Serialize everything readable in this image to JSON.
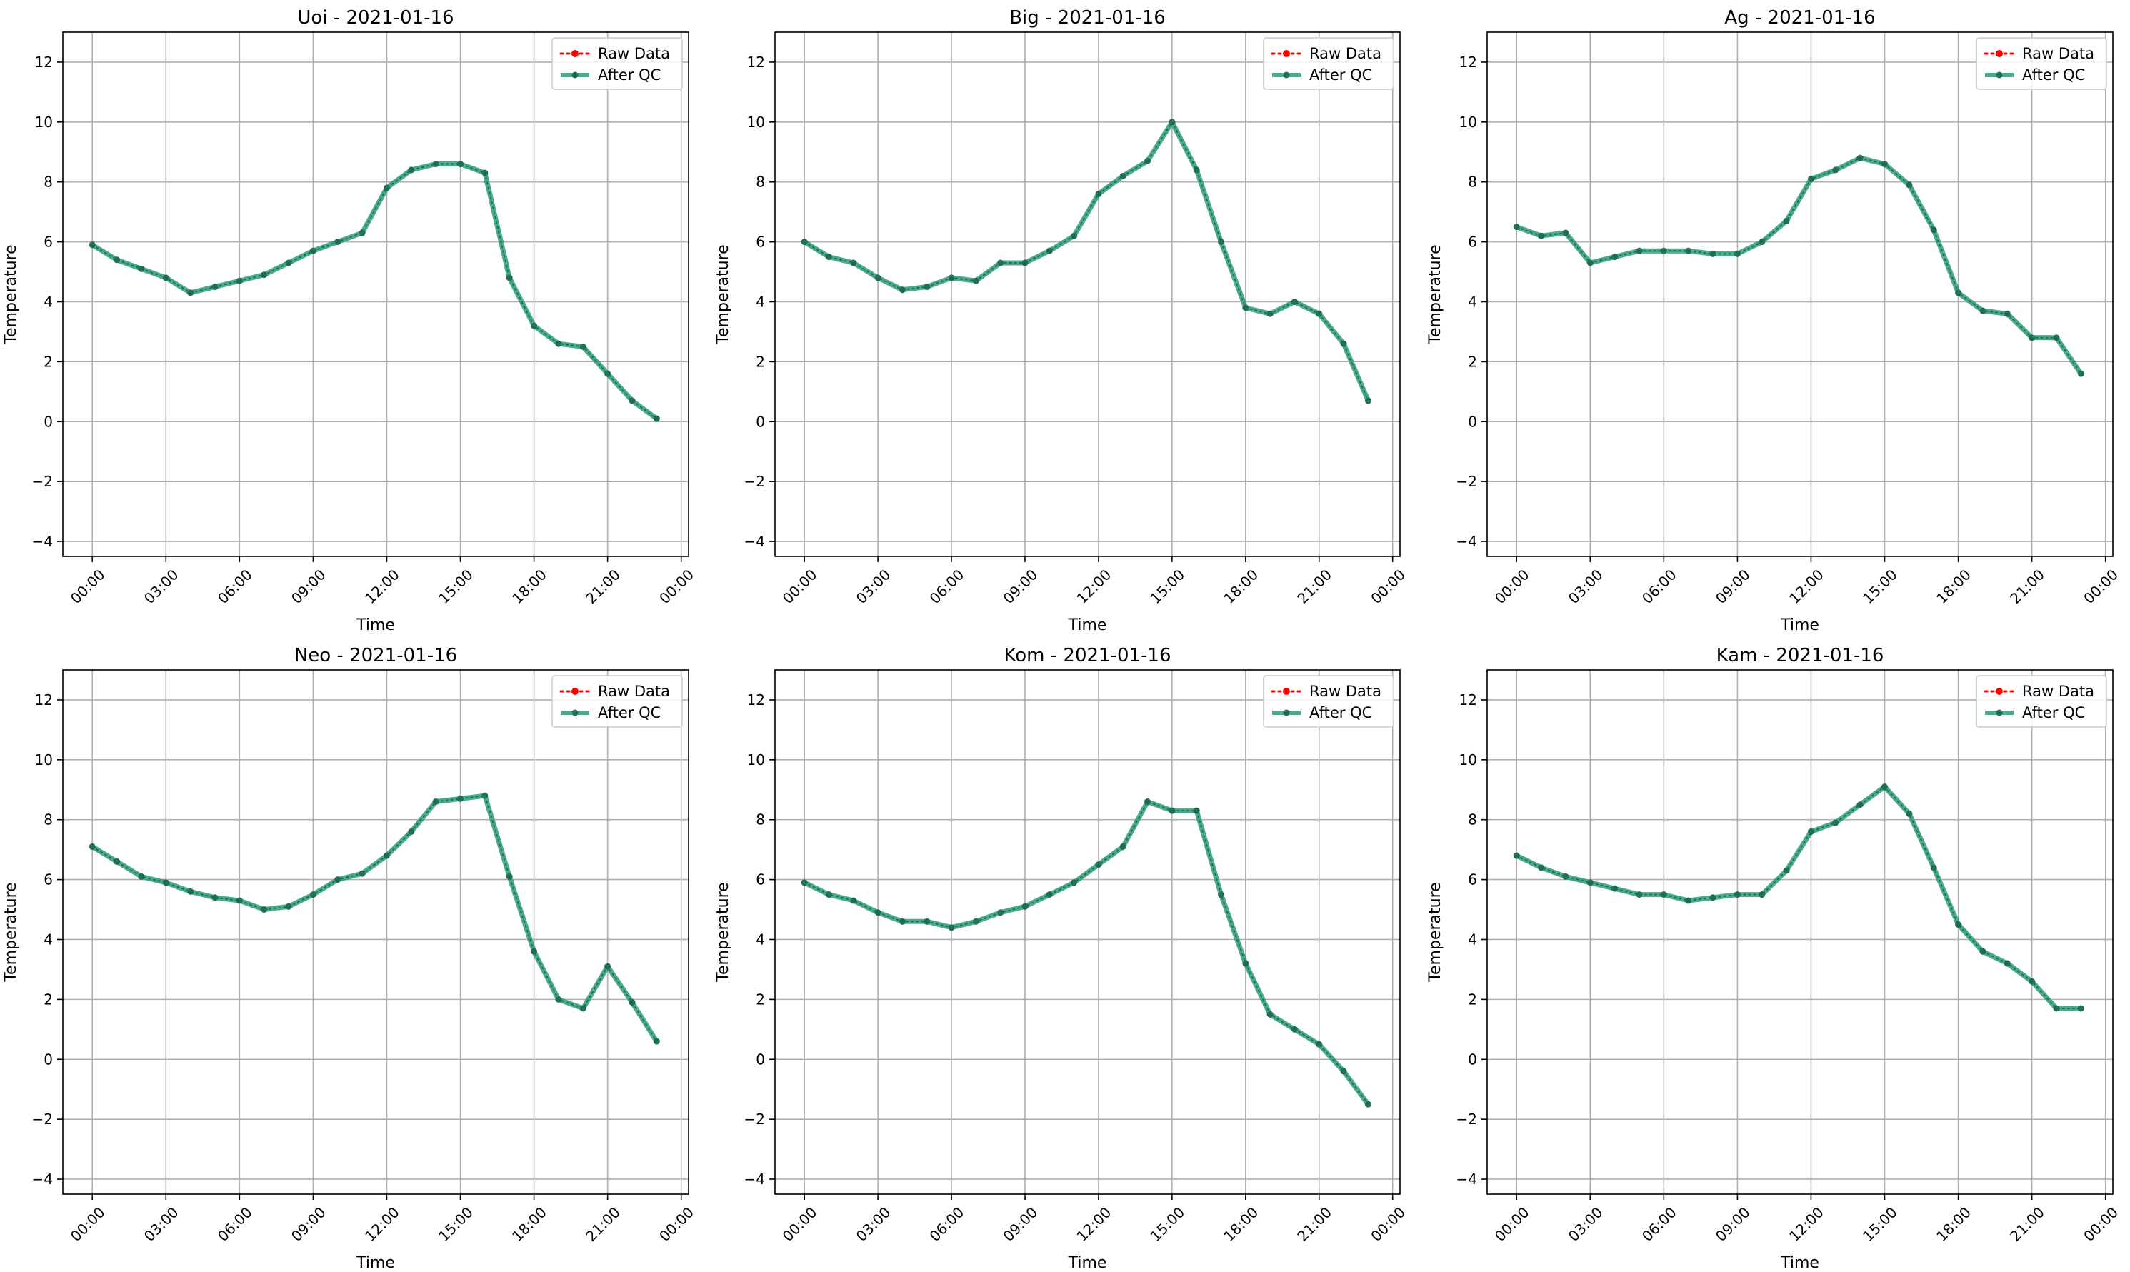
{
  "colors": {
    "raw": "#ff0000",
    "qc": "#2a9d74",
    "qc_marker": "#1f6e55",
    "grid": "#b0b0b0",
    "frame": "#000000"
  },
  "chart_data": [
    {
      "type": "line",
      "title": "Uoi - 2021-01-16",
      "xlabel": "Time",
      "ylabel": "Temperature",
      "xlim_hours": [
        -1.2,
        24.3
      ],
      "ylim": [
        -4.5,
        13.0
      ],
      "x_ticks": [
        "00:00",
        "03:00",
        "06:00",
        "09:00",
        "12:00",
        "15:00",
        "18:00",
        "21:00",
        "00:00"
      ],
      "y_ticks": [
        "−4",
        "−2",
        "0",
        "2",
        "4",
        "6",
        "8",
        "10",
        "12"
      ],
      "grid": true,
      "legend_position": "upper right",
      "legend": [
        "Raw Data",
        "After QC"
      ],
      "x_hours": [
        0,
        1,
        2,
        3,
        4,
        5,
        6,
        7,
        8,
        9,
        10,
        11,
        12,
        13,
        14,
        15,
        16,
        17,
        18,
        19,
        20,
        21,
        22,
        23
      ],
      "series": [
        {
          "name": "Raw Data",
          "values": [
            5.9,
            5.4,
            5.1,
            4.8,
            4.3,
            4.5,
            4.7,
            4.9,
            5.3,
            5.7,
            6.0,
            6.3,
            7.8,
            8.4,
            8.6,
            8.6,
            8.3,
            4.8,
            3.2,
            2.6,
            2.5,
            1.6,
            0.7,
            0.1
          ]
        },
        {
          "name": "After QC",
          "values": [
            5.9,
            5.4,
            5.1,
            4.8,
            4.3,
            4.5,
            4.7,
            4.9,
            5.3,
            5.7,
            6.0,
            6.3,
            7.8,
            8.4,
            8.6,
            8.6,
            8.3,
            4.8,
            3.2,
            2.6,
            2.5,
            1.6,
            0.7,
            0.1
          ]
        }
      ]
    },
    {
      "type": "line",
      "title": "Big - 2021-01-16",
      "xlabel": "Time",
      "ylabel": "Temperature",
      "xlim_hours": [
        -1.2,
        24.3
      ],
      "ylim": [
        -4.5,
        13.0
      ],
      "x_ticks": [
        "00:00",
        "03:00",
        "06:00",
        "09:00",
        "12:00",
        "15:00",
        "18:00",
        "21:00",
        "00:00"
      ],
      "y_ticks": [
        "−4",
        "−2",
        "0",
        "2",
        "4",
        "6",
        "8",
        "10",
        "12"
      ],
      "grid": true,
      "legend_position": "upper right",
      "legend": [
        "Raw Data",
        "After QC"
      ],
      "x_hours": [
        0,
        1,
        2,
        3,
        4,
        5,
        6,
        7,
        8,
        9,
        10,
        11,
        12,
        13,
        14,
        15,
        16,
        17,
        18,
        19,
        20,
        21,
        22,
        23
      ],
      "series": [
        {
          "name": "Raw Data",
          "values": [
            6.0,
            5.5,
            5.3,
            4.8,
            4.4,
            4.5,
            4.8,
            4.7,
            5.3,
            5.3,
            5.7,
            6.2,
            7.6,
            8.2,
            8.7,
            10.0,
            8.4,
            6.0,
            3.8,
            3.6,
            4.0,
            3.6,
            2.6,
            0.7
          ]
        },
        {
          "name": "After QC",
          "values": [
            6.0,
            5.5,
            5.3,
            4.8,
            4.4,
            4.5,
            4.8,
            4.7,
            5.3,
            5.3,
            5.7,
            6.2,
            7.6,
            8.2,
            8.7,
            10.0,
            8.4,
            6.0,
            3.8,
            3.6,
            4.0,
            3.6,
            2.6,
            0.7
          ]
        }
      ]
    },
    {
      "type": "line",
      "title": "Ag - 2021-01-16",
      "xlabel": "Time",
      "ylabel": "Temperature",
      "xlim_hours": [
        -1.2,
        24.3
      ],
      "ylim": [
        -4.5,
        13.0
      ],
      "x_ticks": [
        "00:00",
        "03:00",
        "06:00",
        "09:00",
        "12:00",
        "15:00",
        "18:00",
        "21:00",
        "00:00"
      ],
      "y_ticks": [
        "−4",
        "−2",
        "0",
        "2",
        "4",
        "6",
        "8",
        "10",
        "12"
      ],
      "grid": true,
      "legend_position": "upper right",
      "legend": [
        "Raw Data",
        "After QC"
      ],
      "x_hours": [
        0,
        1,
        2,
        3,
        4,
        5,
        6,
        7,
        8,
        9,
        10,
        11,
        12,
        13,
        14,
        15,
        16,
        17,
        18,
        19,
        20,
        21,
        22,
        23
      ],
      "series": [
        {
          "name": "Raw Data",
          "values": [
            6.5,
            6.2,
            6.3,
            5.3,
            5.5,
            5.7,
            5.7,
            5.7,
            5.6,
            5.6,
            6.0,
            6.7,
            8.1,
            8.4,
            8.8,
            8.6,
            7.9,
            6.4,
            4.3,
            3.7,
            3.6,
            2.8,
            2.8,
            1.6
          ]
        },
        {
          "name": "After QC",
          "values": [
            6.5,
            6.2,
            6.3,
            5.3,
            5.5,
            5.7,
            5.7,
            5.7,
            5.6,
            5.6,
            6.0,
            6.7,
            8.1,
            8.4,
            8.8,
            8.6,
            7.9,
            6.4,
            4.3,
            3.7,
            3.6,
            2.8,
            2.8,
            1.6
          ]
        }
      ]
    },
    {
      "type": "line",
      "title": "Neo - 2021-01-16",
      "xlabel": "Time",
      "ylabel": "Temperature",
      "xlim_hours": [
        -1.2,
        24.3
      ],
      "ylim": [
        -4.5,
        13.0
      ],
      "x_ticks": [
        "00:00",
        "03:00",
        "06:00",
        "09:00",
        "12:00",
        "15:00",
        "18:00",
        "21:00",
        "00:00"
      ],
      "y_ticks": [
        "−4",
        "−2",
        "0",
        "2",
        "4",
        "6",
        "8",
        "10",
        "12"
      ],
      "grid": true,
      "legend_position": "upper right",
      "legend": [
        "Raw Data",
        "After QC"
      ],
      "x_hours": [
        0,
        1,
        2,
        3,
        4,
        5,
        6,
        7,
        8,
        9,
        10,
        11,
        12,
        13,
        14,
        15,
        16,
        17,
        18,
        19,
        20,
        21,
        22,
        23
      ],
      "series": [
        {
          "name": "Raw Data",
          "values": [
            7.1,
            6.6,
            6.1,
            5.9,
            5.6,
            5.4,
            5.3,
            5.0,
            5.1,
            5.5,
            6.0,
            6.2,
            6.8,
            7.6,
            8.6,
            8.7,
            8.8,
            6.1,
            3.6,
            2.0,
            1.7,
            3.1,
            1.9,
            0.6
          ]
        },
        {
          "name": "After QC",
          "values": [
            7.1,
            6.6,
            6.1,
            5.9,
            5.6,
            5.4,
            5.3,
            5.0,
            5.1,
            5.5,
            6.0,
            6.2,
            6.8,
            7.6,
            8.6,
            8.7,
            8.8,
            6.1,
            3.6,
            2.0,
            1.7,
            3.1,
            1.9,
            0.6
          ]
        }
      ]
    },
    {
      "type": "line",
      "title": "Kom - 2021-01-16",
      "xlabel": "Time",
      "ylabel": "Temperature",
      "xlim_hours": [
        -1.2,
        24.3
      ],
      "ylim": [
        -4.5,
        13.0
      ],
      "x_ticks": [
        "00:00",
        "03:00",
        "06:00",
        "09:00",
        "12:00",
        "15:00",
        "18:00",
        "21:00",
        "00:00"
      ],
      "y_ticks": [
        "−4",
        "−2",
        "0",
        "2",
        "4",
        "6",
        "8",
        "10",
        "12"
      ],
      "grid": true,
      "legend_position": "upper right",
      "legend": [
        "Raw Data",
        "After QC"
      ],
      "x_hours": [
        0,
        1,
        2,
        3,
        4,
        5,
        6,
        7,
        8,
        9,
        10,
        11,
        12,
        13,
        14,
        15,
        16,
        17,
        18,
        19,
        20,
        21,
        22,
        23
      ],
      "series": [
        {
          "name": "Raw Data",
          "values": [
            5.9,
            5.5,
            5.3,
            4.9,
            4.6,
            4.6,
            4.4,
            4.6,
            4.9,
            5.1,
            5.5,
            5.9,
            6.5,
            7.1,
            8.6,
            8.3,
            8.3,
            5.5,
            3.2,
            1.5,
            1.0,
            0.5,
            -0.4,
            -1.5
          ]
        },
        {
          "name": "After QC",
          "values": [
            5.9,
            5.5,
            5.3,
            4.9,
            4.6,
            4.6,
            4.4,
            4.6,
            4.9,
            5.1,
            5.5,
            5.9,
            6.5,
            7.1,
            8.6,
            8.3,
            8.3,
            5.5,
            3.2,
            1.5,
            1.0,
            0.5,
            -0.4,
            -1.5
          ]
        }
      ]
    },
    {
      "type": "line",
      "title": "Kam - 2021-01-16",
      "xlabel": "Time",
      "ylabel": "Temperature",
      "xlim_hours": [
        -1.2,
        24.3
      ],
      "ylim": [
        -4.5,
        13.0
      ],
      "x_ticks": [
        "00:00",
        "03:00",
        "06:00",
        "09:00",
        "12:00",
        "15:00",
        "18:00",
        "21:00",
        "00:00"
      ],
      "y_ticks": [
        "−4",
        "−2",
        "0",
        "2",
        "4",
        "6",
        "8",
        "10",
        "12"
      ],
      "grid": true,
      "legend_position": "upper right",
      "legend": [
        "Raw Data",
        "After QC"
      ],
      "x_hours": [
        0,
        1,
        2,
        3,
        4,
        5,
        6,
        7,
        8,
        9,
        10,
        11,
        12,
        13,
        14,
        15,
        16,
        17,
        18,
        19,
        20,
        21,
        22,
        23
      ],
      "series": [
        {
          "name": "Raw Data",
          "values": [
            6.8,
            6.4,
            6.1,
            5.9,
            5.7,
            5.5,
            5.5,
            5.3,
            5.4,
            5.5,
            5.5,
            6.3,
            7.6,
            7.9,
            8.5,
            9.1,
            8.2,
            6.4,
            4.5,
            3.6,
            3.2,
            2.6,
            1.7,
            1.7
          ]
        },
        {
          "name": "After QC",
          "values": [
            6.8,
            6.4,
            6.1,
            5.9,
            5.7,
            5.5,
            5.5,
            5.3,
            5.4,
            5.5,
            5.5,
            6.3,
            7.6,
            7.9,
            8.5,
            9.1,
            8.2,
            6.4,
            4.5,
            3.6,
            3.2,
            2.6,
            1.7,
            1.7
          ]
        }
      ]
    }
  ]
}
